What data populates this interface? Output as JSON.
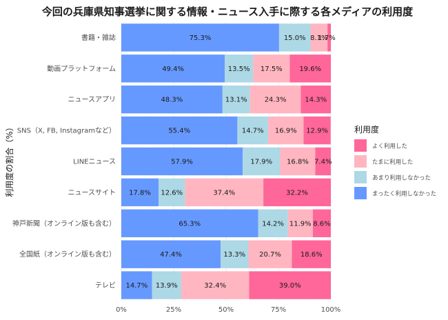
{
  "chart_data": {
    "type": "bar",
    "orientation": "horizontal",
    "stacked": true,
    "title": "今回の兵庫県知事選挙に関する情報・ニュース入手に際する各メディアの利用度",
    "xlabel": "",
    "ylabel": "利用度の割合（%）",
    "xlim": [
      0,
      100
    ],
    "x_ticks": [
      "0%",
      "25%",
      "50%",
      "75%",
      "100%"
    ],
    "grid": true,
    "legend_title": "利用度",
    "legend_position": "right",
    "categories": [
      "書籍・雑誌",
      "動画プラットフォーム",
      "ニュースアプリ",
      "SNS（X, FB, Instagramなど）",
      "LINEニュース",
      "ニュースサイト",
      "神戸新聞（オンライン版も含む）",
      "全国紙（オンライン版も含む）",
      "テレビ"
    ],
    "series": [
      {
        "name": "まったく利用しなかった",
        "color": "#6699ff",
        "values": [
          75.3,
          49.4,
          48.3,
          55.4,
          57.9,
          17.8,
          65.3,
          47.4,
          14.7
        ],
        "labels": [
          "75.3%",
          "49.4%",
          "48.3%",
          "55.4%",
          "57.9%",
          "17.8%",
          "65.3%",
          "47.4%",
          "14.7%"
        ]
      },
      {
        "name": "あまり利用しなかった",
        "color": "#add8e6",
        "values": [
          15.0,
          13.5,
          13.1,
          14.7,
          17.9,
          12.6,
          14.2,
          13.3,
          13.9
        ],
        "labels": [
          "15.0%",
          "13.5%",
          "13.1%",
          "14.7%",
          "17.9%",
          "12.6%",
          "14.2%",
          "13.3%",
          "13.9%"
        ]
      },
      {
        "name": "たまに利用した",
        "color": "#ffb6c1",
        "values": [
          8.1,
          17.5,
          24.3,
          16.9,
          16.8,
          37.4,
          11.9,
          20.7,
          32.4
        ],
        "labels": [
          "8.1%",
          "17.5%",
          "24.3%",
          "16.9%",
          "16.8%",
          "37.4%",
          "11.9%",
          "20.7%",
          "32.4%"
        ]
      },
      {
        "name": "よく利用した",
        "color": "#ff6699",
        "values": [
          1.7,
          19.6,
          14.3,
          12.9,
          7.4,
          32.2,
          8.6,
          18.6,
          39.0
        ],
        "labels": [
          "1.7%",
          "19.6%",
          "14.3%",
          "12.9%",
          "7.4%",
          "32.2%",
          "8.6%",
          "18.6%",
          "39.0%"
        ]
      }
    ],
    "legend_order": [
      "よく利用した",
      "たまに利用した",
      "あまり利用しなかった",
      "まったく利用しなかった"
    ]
  }
}
